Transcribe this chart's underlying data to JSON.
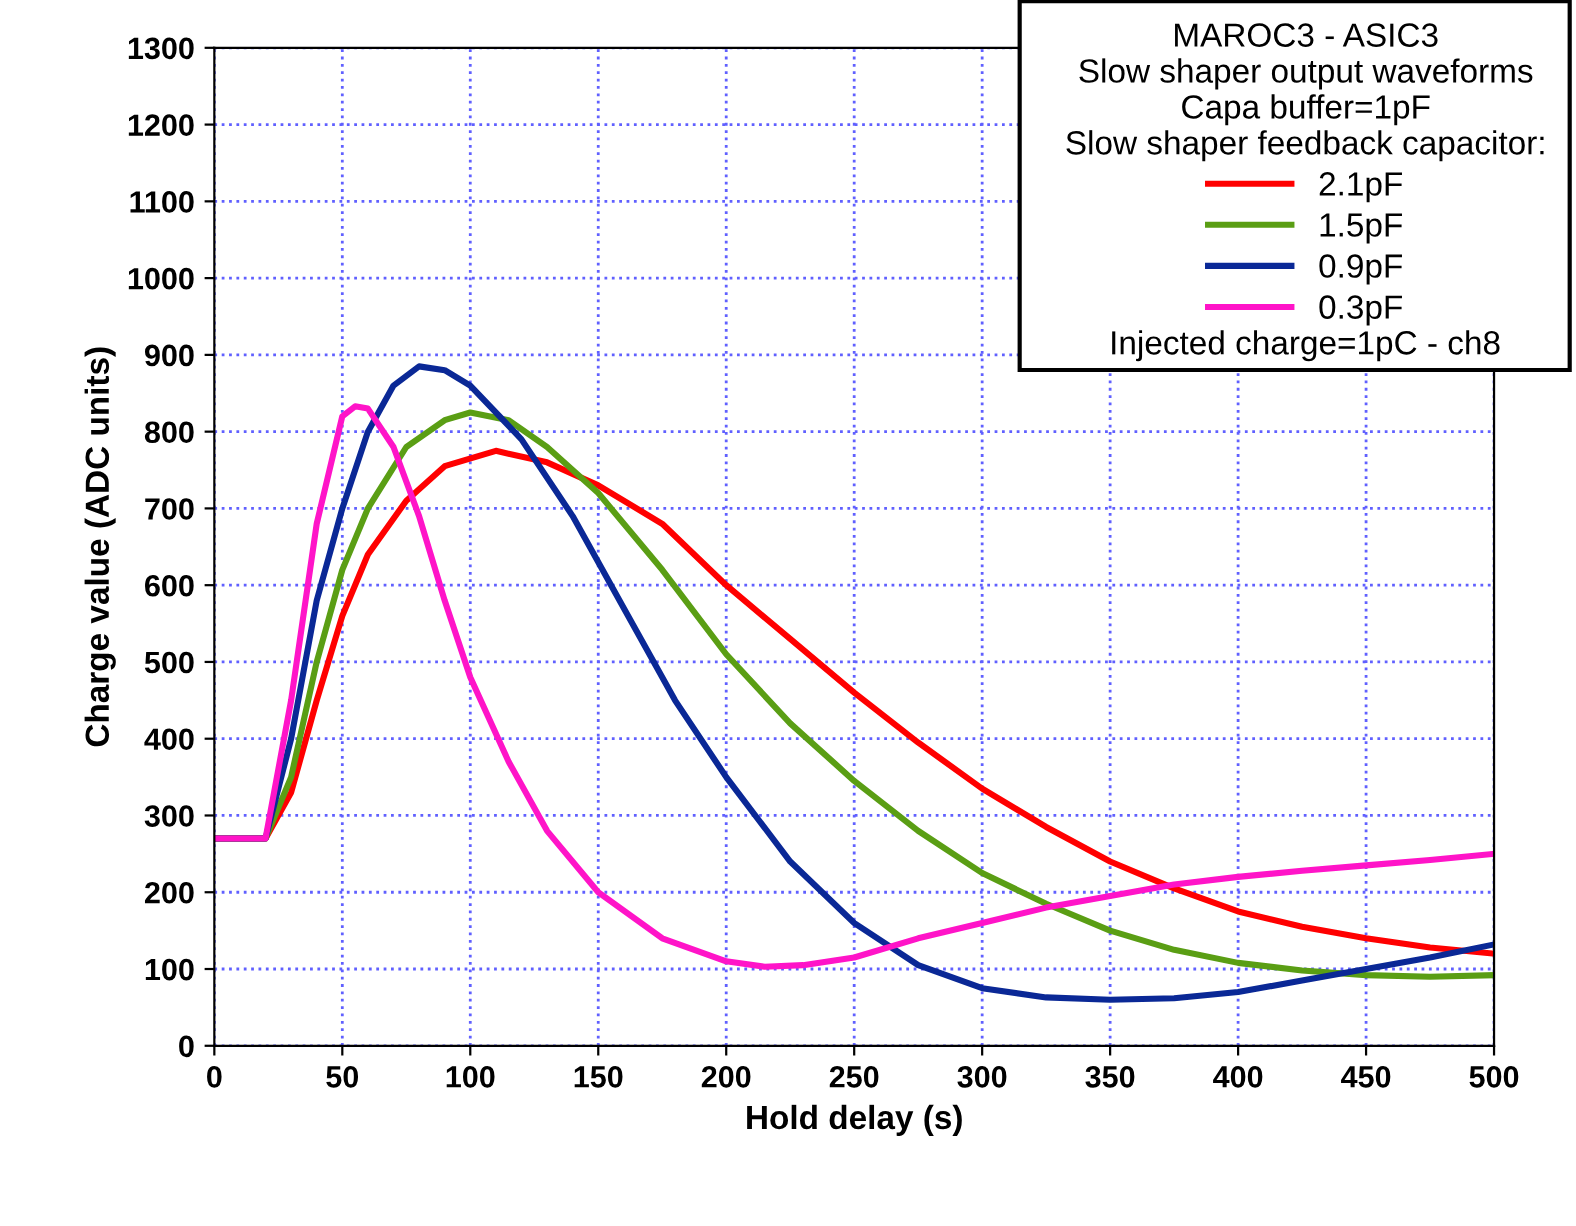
{
  "chart_data": {
    "type": "line",
    "xlabel": "Hold delay (s)",
    "ylabel": "Charge value (ADC units)",
    "legend_title": "MAROC3 - ASIC3\nSlow shaper output waveforms\nCapa buffer=1pF\nSlow shaper feedback capacitor:",
    "annotations": [
      "Injected charge=1pC - ch8"
    ],
    "xlim": [
      0,
      500
    ],
    "xticks": [
      0,
      50,
      100,
      150,
      200,
      250,
      300,
      350,
      400,
      450,
      500
    ],
    "ylim": [
      0,
      1300
    ],
    "yticks": [
      0,
      100,
      200,
      300,
      400,
      500,
      600,
      700,
      800,
      900,
      1000,
      1100,
      1200,
      1300
    ],
    "grid": true,
    "legend": "top right",
    "marker": "none",
    "line_style": "solid",
    "series": [
      {
        "name": "2.1pF",
        "color": "#ff0000",
        "x": [
          0,
          20,
          30,
          40,
          50,
          60,
          75,
          90,
          110,
          130,
          150,
          175,
          200,
          225,
          250,
          275,
          300,
          325,
          350,
          375,
          400,
          425,
          450,
          475,
          500
        ],
        "values": [
          270,
          270,
          330,
          450,
          560,
          640,
          710,
          755,
          775,
          760,
          730,
          680,
          600,
          530,
          460,
          395,
          335,
          285,
          240,
          205,
          175,
          155,
          140,
          128,
          120
        ]
      },
      {
        "name": "1.5pF",
        "color": "#5a9e14",
        "x": [
          0,
          20,
          30,
          40,
          50,
          60,
          75,
          90,
          100,
          115,
          130,
          150,
          175,
          200,
          225,
          250,
          275,
          300,
          325,
          350,
          375,
          400,
          425,
          450,
          475,
          500
        ],
        "values": [
          270,
          270,
          350,
          500,
          620,
          700,
          780,
          815,
          825,
          815,
          780,
          720,
          620,
          510,
          420,
          345,
          280,
          225,
          185,
          150,
          125,
          108,
          98,
          92,
          90,
          92
        ]
      },
      {
        "name": "0.9pF",
        "color": "#0a2896",
        "x": [
          0,
          20,
          30,
          40,
          50,
          60,
          70,
          80,
          90,
          100,
          120,
          140,
          160,
          180,
          200,
          225,
          250,
          275,
          300,
          325,
          350,
          375,
          400,
          425,
          450,
          475,
          500
        ],
        "values": [
          270,
          270,
          400,
          580,
          700,
          800,
          860,
          885,
          880,
          860,
          790,
          690,
          570,
          450,
          350,
          240,
          160,
          105,
          75,
          63,
          60,
          62,
          70,
          85,
          100,
          115,
          132
        ]
      },
      {
        "name": "0.3pF",
        "color": "#ff14c8",
        "x": [
          0,
          20,
          30,
          40,
          50,
          55,
          60,
          70,
          80,
          90,
          100,
          115,
          130,
          150,
          175,
          200,
          215,
          230,
          250,
          275,
          300,
          325,
          350,
          375,
          400,
          425,
          450,
          475,
          500
        ],
        "values": [
          270,
          270,
          450,
          680,
          820,
          833,
          830,
          780,
          690,
          580,
          480,
          370,
          280,
          200,
          140,
          110,
          103,
          105,
          115,
          140,
          160,
          180,
          195,
          210,
          220,
          228,
          235,
          242,
          250
        ]
      }
    ]
  }
}
